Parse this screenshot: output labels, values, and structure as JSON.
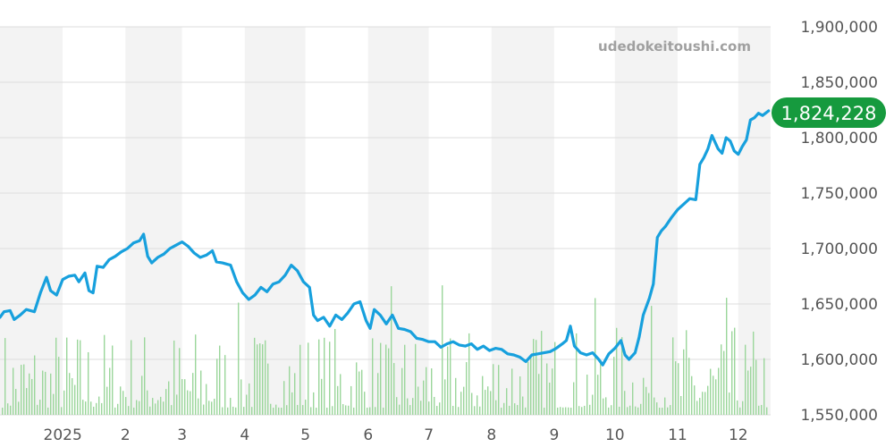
{
  "watermark": "udedokeitoushi.com",
  "chart_data": {
    "type": "line",
    "y_axis_position": "right",
    "ylim": [
      1550000,
      1900000
    ],
    "y_ticks": [
      "1,900,000",
      "1,850,000",
      "1,800,000",
      "1,750,000",
      "1,700,000",
      "1,650,000",
      "1,600,000",
      "1,550,000"
    ],
    "y_tick_values": [
      1900000,
      1850000,
      1800000,
      1750000,
      1700000,
      1650000,
      1600000,
      1550000
    ],
    "x_range": [
      "2024-12-01",
      "2025-12-17"
    ],
    "x_ticks": [
      {
        "label": "2025",
        "date": "2025-01-01"
      },
      {
        "label": "2",
        "date": "2025-02-01"
      },
      {
        "label": "3",
        "date": "2025-03-01"
      },
      {
        "label": "4",
        "date": "2025-04-01"
      },
      {
        "label": "5",
        "date": "2025-05-01"
      },
      {
        "label": "6",
        "date": "2025-06-01"
      },
      {
        "label": "7",
        "date": "2025-07-01"
      },
      {
        "label": "8",
        "date": "2025-08-01"
      },
      {
        "label": "9",
        "date": "2025-09-01"
      },
      {
        "label": "10",
        "date": "2025-10-01"
      },
      {
        "label": "11",
        "date": "2025-11-01"
      },
      {
        "label": "12",
        "date": "2025-12-01"
      }
    ],
    "month_bands": "alternating light gray / white",
    "grid": true,
    "current_value_label": "1,824,228",
    "colors": {
      "line": "#17a0dd",
      "volume": "#9bd69b",
      "badge": "#169a3e",
      "band": "#f3f3f3",
      "grid": "#dddddd"
    },
    "series": [
      {
        "kind": "price",
        "points": [
          [
            "2024-12-01",
            1638000
          ],
          [
            "2024-12-03",
            1643000
          ],
          [
            "2024-12-06",
            1644000
          ],
          [
            "2024-12-08",
            1636000
          ],
          [
            "2024-12-11",
            1640000
          ],
          [
            "2024-12-14",
            1645000
          ],
          [
            "2024-12-18",
            1643000
          ],
          [
            "2024-12-21",
            1660000
          ],
          [
            "2024-12-24",
            1674000
          ],
          [
            "2024-12-26",
            1662000
          ],
          [
            "2024-12-29",
            1658000
          ],
          [
            "2025-01-01",
            1672000
          ],
          [
            "2025-01-04",
            1675000
          ],
          [
            "2025-01-07",
            1676000
          ],
          [
            "2025-01-09",
            1670000
          ],
          [
            "2025-01-12",
            1678000
          ],
          [
            "2025-01-14",
            1662000
          ],
          [
            "2025-01-16",
            1660000
          ],
          [
            "2025-01-18",
            1684000
          ],
          [
            "2025-01-21",
            1683000
          ],
          [
            "2025-01-24",
            1690000
          ],
          [
            "2025-01-27",
            1693000
          ],
          [
            "2025-01-30",
            1697000
          ],
          [
            "2025-02-02",
            1700000
          ],
          [
            "2025-02-05",
            1705000
          ],
          [
            "2025-02-08",
            1707000
          ],
          [
            "2025-02-10",
            1713000
          ],
          [
            "2025-02-12",
            1693000
          ],
          [
            "2025-02-14",
            1687000
          ],
          [
            "2025-02-17",
            1692000
          ],
          [
            "2025-02-20",
            1695000
          ],
          [
            "2025-02-23",
            1700000
          ],
          [
            "2025-02-26",
            1703000
          ],
          [
            "2025-03-01",
            1706000
          ],
          [
            "2025-03-04",
            1702000
          ],
          [
            "2025-03-07",
            1696000
          ],
          [
            "2025-03-10",
            1692000
          ],
          [
            "2025-03-13",
            1694000
          ],
          [
            "2025-03-16",
            1698000
          ],
          [
            "2025-03-18",
            1688000
          ],
          [
            "2025-03-21",
            1687000
          ],
          [
            "2025-03-25",
            1685000
          ],
          [
            "2025-03-28",
            1670000
          ],
          [
            "2025-03-31",
            1660000
          ],
          [
            "2025-04-03",
            1654000
          ],
          [
            "2025-04-06",
            1658000
          ],
          [
            "2025-04-09",
            1665000
          ],
          [
            "2025-04-12",
            1661000
          ],
          [
            "2025-04-15",
            1668000
          ],
          [
            "2025-04-18",
            1670000
          ],
          [
            "2025-04-21",
            1676000
          ],
          [
            "2025-04-24",
            1685000
          ],
          [
            "2025-04-27",
            1680000
          ],
          [
            "2025-04-30",
            1670000
          ],
          [
            "2025-05-03",
            1665000
          ],
          [
            "2025-05-05",
            1640000
          ],
          [
            "2025-05-07",
            1635000
          ],
          [
            "2025-05-10",
            1638000
          ],
          [
            "2025-05-13",
            1630000
          ],
          [
            "2025-05-16",
            1640000
          ],
          [
            "2025-05-19",
            1636000
          ],
          [
            "2025-05-22",
            1642000
          ],
          [
            "2025-05-25",
            1650000
          ],
          [
            "2025-05-28",
            1652000
          ],
          [
            "2025-05-31",
            1635000
          ],
          [
            "2025-06-02",
            1628000
          ],
          [
            "2025-06-04",
            1645000
          ],
          [
            "2025-06-07",
            1640000
          ],
          [
            "2025-06-10",
            1632000
          ],
          [
            "2025-06-13",
            1640000
          ],
          [
            "2025-06-16",
            1628000
          ],
          [
            "2025-06-19",
            1627000
          ],
          [
            "2025-06-22",
            1625000
          ],
          [
            "2025-06-25",
            1619000
          ],
          [
            "2025-06-28",
            1618000
          ],
          [
            "2025-07-01",
            1616000
          ],
          [
            "2025-07-04",
            1616000
          ],
          [
            "2025-07-07",
            1611000
          ],
          [
            "2025-07-10",
            1614000
          ],
          [
            "2025-07-13",
            1616000
          ],
          [
            "2025-07-16",
            1613000
          ],
          [
            "2025-07-19",
            1612000
          ],
          [
            "2025-07-22",
            1614000
          ],
          [
            "2025-07-25",
            1609000
          ],
          [
            "2025-07-28",
            1612000
          ],
          [
            "2025-07-31",
            1608000
          ],
          [
            "2025-08-03",
            1610000
          ],
          [
            "2025-08-06",
            1609000
          ],
          [
            "2025-08-09",
            1605000
          ],
          [
            "2025-08-12",
            1604000
          ],
          [
            "2025-08-15",
            1602000
          ],
          [
            "2025-08-18",
            1598000
          ],
          [
            "2025-08-21",
            1604000
          ],
          [
            "2025-08-24",
            1605000
          ],
          [
            "2025-08-27",
            1606000
          ],
          [
            "2025-08-30",
            1607000
          ],
          [
            "2025-09-02",
            1610000
          ],
          [
            "2025-09-05",
            1614000
          ],
          [
            "2025-09-07",
            1617000
          ],
          [
            "2025-09-09",
            1630000
          ],
          [
            "2025-09-11",
            1612000
          ],
          [
            "2025-09-14",
            1606000
          ],
          [
            "2025-09-17",
            1604000
          ],
          [
            "2025-09-20",
            1606000
          ],
          [
            "2025-09-23",
            1600000
          ],
          [
            "2025-09-25",
            1595000
          ],
          [
            "2025-09-28",
            1605000
          ],
          [
            "2025-10-01",
            1610000
          ],
          [
            "2025-10-04",
            1617000
          ],
          [
            "2025-10-06",
            1604000
          ],
          [
            "2025-10-08",
            1600000
          ],
          [
            "2025-10-11",
            1606000
          ],
          [
            "2025-10-13",
            1620000
          ],
          [
            "2025-10-15",
            1640000
          ],
          [
            "2025-10-18",
            1655000
          ],
          [
            "2025-10-20",
            1668000
          ],
          [
            "2025-10-22",
            1710000
          ],
          [
            "2025-10-24",
            1716000
          ],
          [
            "2025-10-26",
            1720000
          ],
          [
            "2025-10-29",
            1728000
          ],
          [
            "2025-11-01",
            1735000
          ],
          [
            "2025-11-04",
            1740000
          ],
          [
            "2025-11-07",
            1745000
          ],
          [
            "2025-11-10",
            1744000
          ],
          [
            "2025-11-12",
            1776000
          ],
          [
            "2025-11-14",
            1782000
          ],
          [
            "2025-11-16",
            1790000
          ],
          [
            "2025-11-18",
            1802000
          ],
          [
            "2025-11-21",
            1790000
          ],
          [
            "2025-11-23",
            1786000
          ],
          [
            "2025-11-25",
            1800000
          ],
          [
            "2025-11-27",
            1797000
          ],
          [
            "2025-11-29",
            1788000
          ],
          [
            "2025-12-01",
            1785000
          ],
          [
            "2025-12-03",
            1792000
          ],
          [
            "2025-12-05",
            1798000
          ],
          [
            "2025-12-07",
            1816000
          ],
          [
            "2025-12-09",
            1818000
          ],
          [
            "2025-12-11",
            1822000
          ],
          [
            "2025-12-13",
            1820000
          ],
          [
            "2025-12-16",
            1824228
          ]
        ]
      }
    ]
  }
}
